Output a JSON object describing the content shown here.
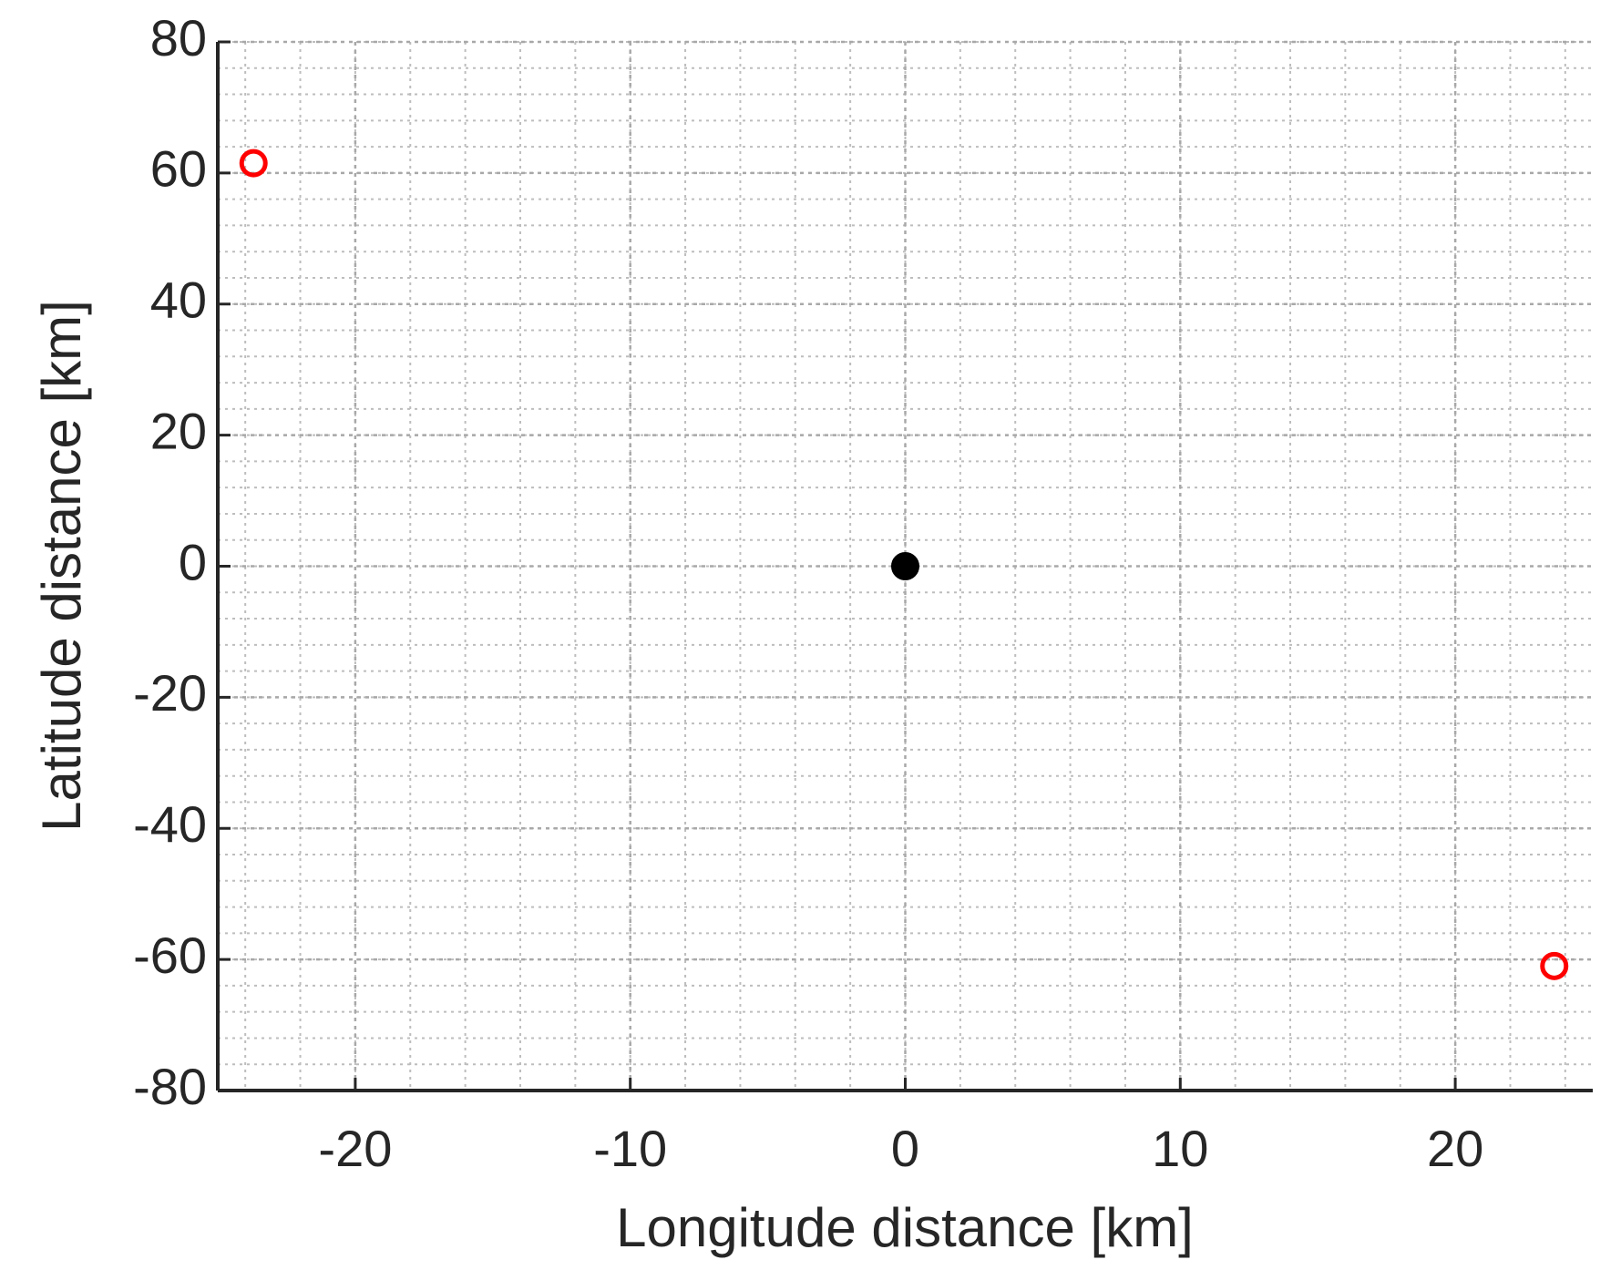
{
  "chart_data": {
    "type": "scatter",
    "xlabel": "Longitude distance [km]",
    "ylabel": "Latitude distance [km]",
    "xlim": [
      -25,
      25
    ],
    "xticks": [
      -20,
      -10,
      0,
      10,
      20
    ],
    "ylim": [
      -80,
      80
    ],
    "yticks": [
      -80,
      -60,
      -40,
      -20,
      0,
      20,
      40,
      60,
      80
    ],
    "grid": true,
    "minor_grid": true,
    "series": [
      {
        "color": "#ff0000",
        "marker": "open",
        "x": [
          -23.7,
          23.6
        ],
        "values": [
          61.5,
          -61
        ]
      },
      {
        "color": "#000000",
        "marker": "filled",
        "x": [
          0
        ],
        "values": [
          0
        ]
      }
    ]
  }
}
